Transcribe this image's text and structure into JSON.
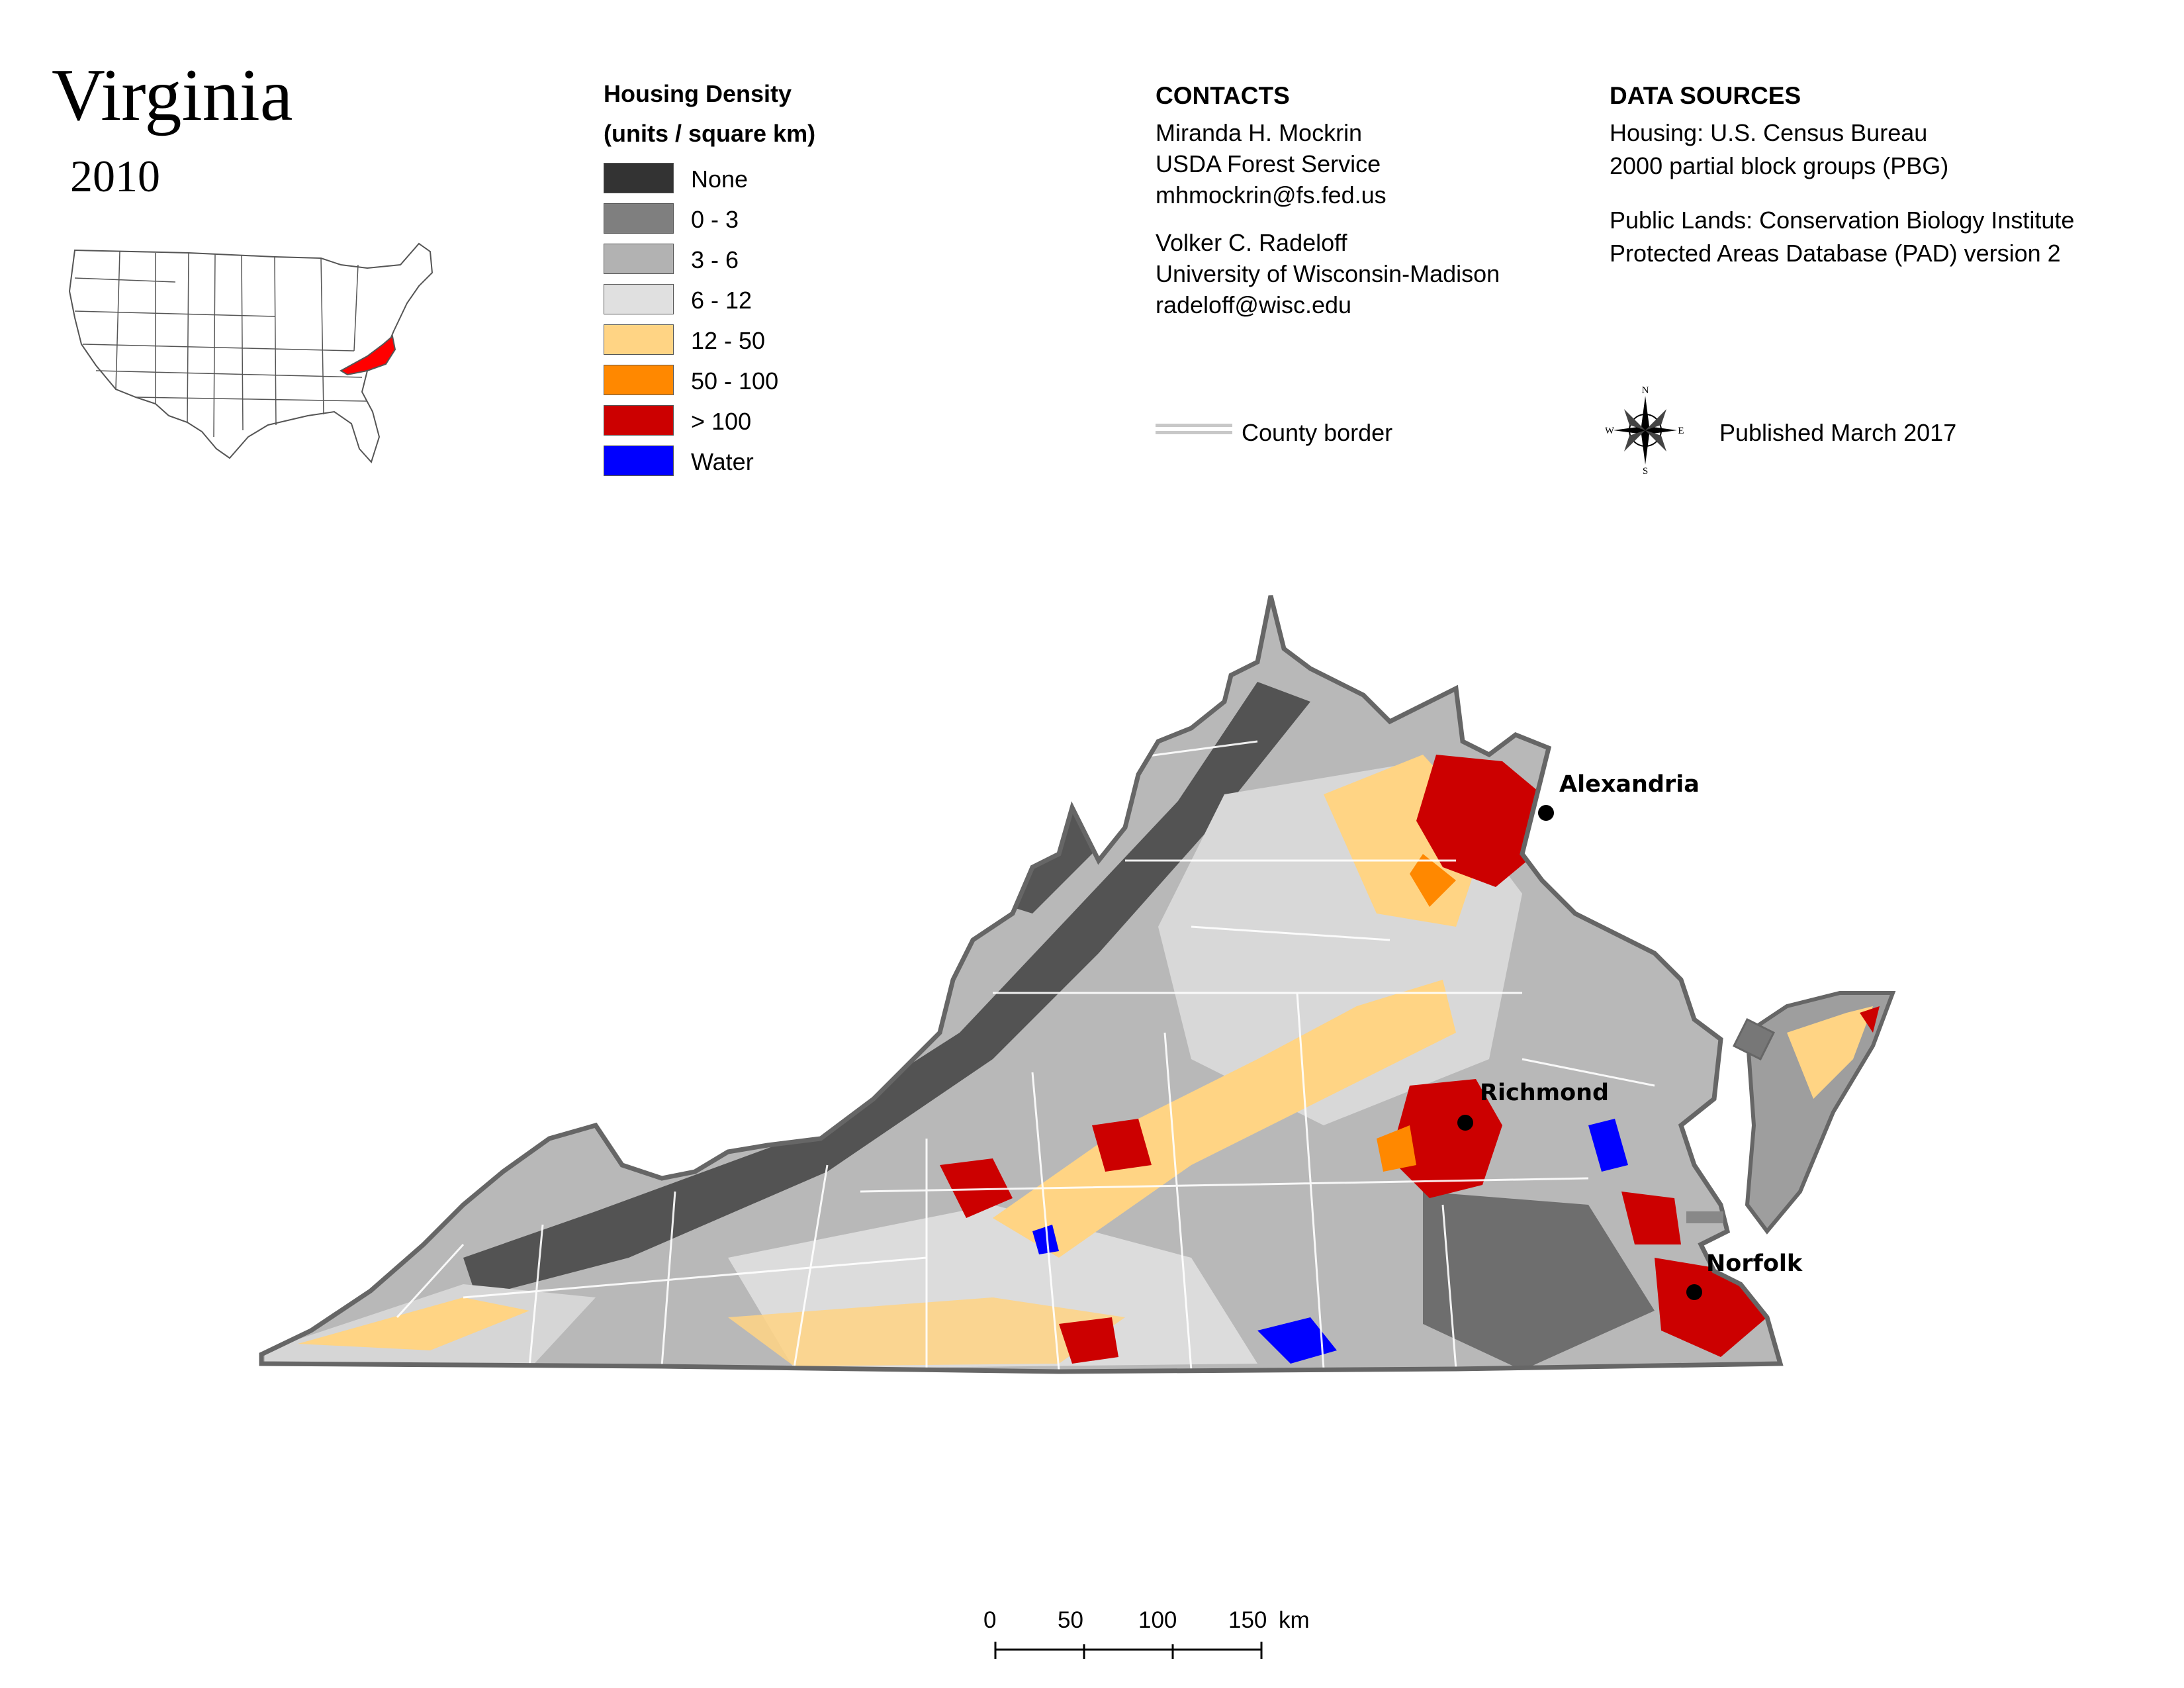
{
  "title": "Virginia",
  "year": "2010",
  "inset": {
    "highlight_state": "Virginia",
    "highlight_color": "#ff0000"
  },
  "legend": {
    "title_line1": "Housing Density",
    "title_line2": "(units / square km)",
    "items": [
      {
        "label": "None",
        "color": "#333333"
      },
      {
        "label": "0 - 3",
        "color": "#7f7f7f"
      },
      {
        "label": "3 - 6",
        "color": "#b2b2b2"
      },
      {
        "label": "6 - 12",
        "color": "#e0e0e0"
      },
      {
        "label": "12 - 50",
        "color": "#ffd484"
      },
      {
        "label": "50 - 100",
        "color": "#ff8800"
      },
      {
        "label": "> 100",
        "color": "#cc0000"
      },
      {
        "label": "Water",
        "color": "#0000ff"
      }
    ]
  },
  "contacts": {
    "heading": "CONTACTS",
    "person1": [
      "Miranda H. Mockrin",
      "USDA Forest Service",
      "mhmockrin@fs.fed.us"
    ],
    "person2": [
      "Volker C. Radeloff",
      "University of Wisconsin-Madison",
      "radeloff@wisc.edu"
    ]
  },
  "county_border": {
    "label": "County border"
  },
  "sources": {
    "heading": "DATA SOURCES",
    "housing": [
      "Housing: U.S. Census Bureau",
      "2000 partial block groups (PBG)"
    ],
    "public_lands": [
      "Public Lands: Conservation Biology Institute",
      "Protected Areas Database (PAD) version 2"
    ]
  },
  "compass": {
    "n": "N",
    "s": "S",
    "e": "E",
    "w": "W"
  },
  "published": "Published March 2017",
  "cities": [
    {
      "name": "Alexandria"
    },
    {
      "name": "Richmond"
    },
    {
      "name": "Norfolk"
    }
  ],
  "scale_bar": {
    "ticks": [
      "0",
      "50",
      "100",
      "150"
    ],
    "unit": "km"
  }
}
